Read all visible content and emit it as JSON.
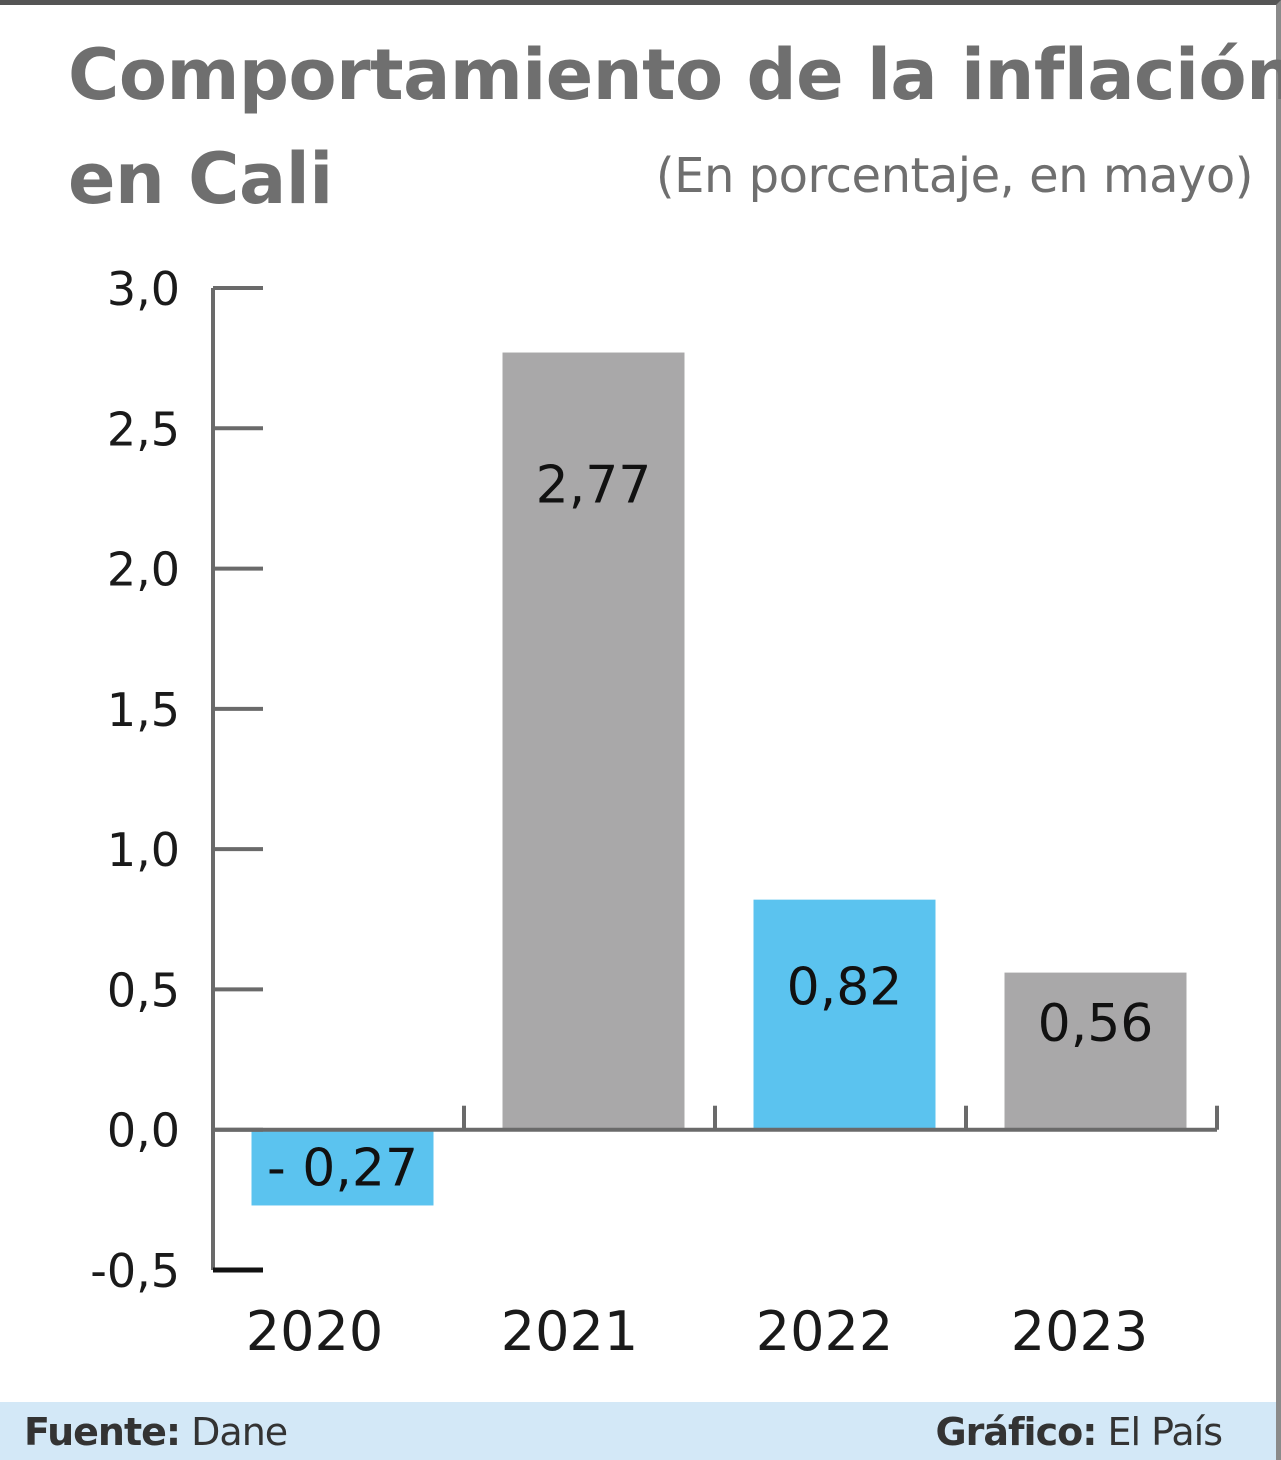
{
  "title_line1": "Comportamiento de la inflación",
  "title_line2": "en Cali",
  "subtitle": "(En porcentaje, en mayo)",
  "footer": {
    "source_label": "Fuente:",
    "source_value": " Dane",
    "credit_label": "Gráfico:",
    "credit_value": " El País"
  },
  "colors": {
    "gray_bar": "#a9a8a9",
    "blue_bar": "#5bc3ef",
    "axis": "#6a6a6a"
  },
  "chart_data": {
    "type": "bar",
    "categories": [
      "2020",
      "2021",
      "2022",
      "2023"
    ],
    "values": [
      -0.27,
      2.77,
      0.82,
      0.56
    ],
    "value_labels": [
      "- 0,27",
      "2,77",
      "0,82",
      "0,56"
    ],
    "bar_colors": [
      "#5bc3ef",
      "#a9a8a9",
      "#5bc3ef",
      "#a9a8a9"
    ],
    "yticks": [
      3.0,
      2.5,
      2.0,
      1.5,
      1.0,
      0.5,
      0.0,
      -0.5
    ],
    "ytick_labels": [
      "3,0",
      "2,5",
      "2,0",
      "1,5",
      "1,0",
      "0,5",
      "0,0",
      "-0,5"
    ],
    "ylim": [
      -0.5,
      3.0
    ],
    "grid": false
  }
}
